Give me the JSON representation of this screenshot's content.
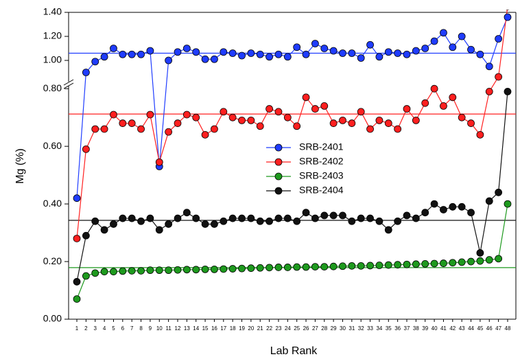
{
  "chart_data": {
    "type": "line",
    "x_label": "Lab Rank",
    "y_label": "Mg (%)",
    "x": [
      1,
      2,
      3,
      4,
      5,
      6,
      7,
      8,
      9,
      10,
      11,
      12,
      13,
      14,
      15,
      16,
      17,
      18,
      19,
      20,
      21,
      22,
      23,
      24,
      25,
      26,
      27,
      28,
      29,
      30,
      31,
      32,
      33,
      34,
      35,
      36,
      37,
      38,
      39,
      40,
      41,
      42,
      43,
      44,
      45,
      46,
      47,
      48
    ],
    "xlim": [
      0.1,
      48.9
    ],
    "ylim": [
      0,
      0.81
    ],
    "yticks": [
      {
        "value": 0,
        "label": "0.00"
      },
      {
        "value": 0.2,
        "label": "0.20"
      },
      {
        "value": 0.4,
        "label": "0.40"
      },
      {
        "value": 0.6,
        "label": "0.60"
      },
      {
        "value": 0.8,
        "label": "0.80"
      }
    ],
    "ylim_upper": [
      0.82,
      1.4
    ],
    "yticks_upper": [
      {
        "value": 1.0,
        "label": "1.00"
      },
      {
        "value": 1.2,
        "label": "1.20"
      },
      {
        "value": 1.4,
        "label": "1.40"
      }
    ],
    "legend": "center",
    "series": [
      {
        "name": "SRB-2401",
        "color": "#1f3cff",
        "mean": 1.06,
        "values": [
          0.42,
          0.9,
          0.99,
          1.03,
          1.1,
          1.05,
          1.05,
          1.05,
          1.08,
          0.53,
          1.0,
          1.07,
          1.1,
          1.07,
          1.01,
          1.01,
          1.07,
          1.06,
          1.04,
          1.06,
          1.05,
          1.03,
          1.05,
          1.03,
          1.11,
          1.05,
          1.14,
          1.1,
          1.08,
          1.06,
          1.06,
          1.02,
          1.13,
          1.03,
          1.07,
          1.06,
          1.05,
          1.08,
          1.1,
          1.16,
          1.23,
          1.11,
          1.2,
          1.09,
          1.05,
          0.95,
          1.18,
          1.36
        ]
      },
      {
        "name": "SRB-2402",
        "color": "#ff1f1f",
        "mean": 0.712,
        "values": [
          0.28,
          0.59,
          0.66,
          0.66,
          0.71,
          0.68,
          0.68,
          0.66,
          0.71,
          0.545,
          0.65,
          0.68,
          0.71,
          0.7,
          0.64,
          0.66,
          0.72,
          0.7,
          0.69,
          0.69,
          0.67,
          0.73,
          0.72,
          0.7,
          0.67,
          0.77,
          0.73,
          0.74,
          0.68,
          0.69,
          0.68,
          0.72,
          0.66,
          0.69,
          0.68,
          0.66,
          0.73,
          0.69,
          0.75,
          0.8,
          0.74,
          0.77,
          0.7,
          0.68,
          0.64,
          0.79,
          0.863,
          1.45
        ]
      },
      {
        "name": "SRB-2403",
        "color": "#1e9a1e",
        "mean": 0.179,
        "values": [
          0.07,
          0.15,
          0.16,
          0.165,
          0.165,
          0.167,
          0.168,
          0.168,
          0.17,
          0.17,
          0.17,
          0.171,
          0.172,
          0.172,
          0.173,
          0.173,
          0.174,
          0.175,
          0.176,
          0.177,
          0.178,
          0.179,
          0.18,
          0.18,
          0.181,
          0.181,
          0.182,
          0.182,
          0.183,
          0.184,
          0.185,
          0.185,
          0.186,
          0.187,
          0.188,
          0.189,
          0.19,
          0.191,
          0.192,
          0.193,
          0.194,
          0.196,
          0.198,
          0.2,
          0.202,
          0.206,
          0.21,
          0.4
        ]
      },
      {
        "name": "SRB-2404",
        "color": "#111111",
        "mean": 0.343,
        "values": [
          0.13,
          0.29,
          0.34,
          0.31,
          0.33,
          0.35,
          0.35,
          0.34,
          0.35,
          0.31,
          0.33,
          0.35,
          0.37,
          0.35,
          0.33,
          0.33,
          0.34,
          0.35,
          0.35,
          0.35,
          0.34,
          0.34,
          0.35,
          0.35,
          0.34,
          0.37,
          0.35,
          0.36,
          0.36,
          0.36,
          0.34,
          0.35,
          0.35,
          0.34,
          0.31,
          0.34,
          0.36,
          0.35,
          0.37,
          0.4,
          0.38,
          0.39,
          0.39,
          0.37,
          0.23,
          0.41,
          0.44,
          0.79
        ]
      }
    ]
  }
}
